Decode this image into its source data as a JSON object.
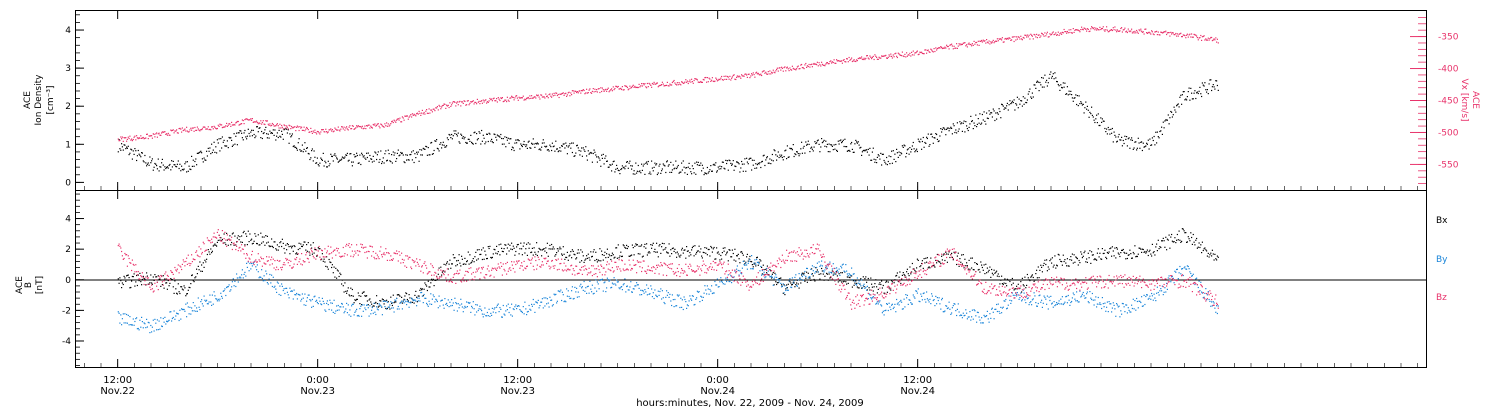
{
  "chart_data": [
    {
      "type": "scatter",
      "panel": "density",
      "title": "",
      "ylabel": [
        "ACE",
        "Ion Density",
        "[cm⁻³]"
      ],
      "ylim": [
        -0.2,
        4.5
      ],
      "yticks": [
        0,
        1,
        2,
        3,
        4
      ],
      "y2label": [
        "ACE",
        "Vx [km/s]"
      ],
      "y2lim": [
        -590,
        -310
      ],
      "y2ticks": [
        -550,
        -500,
        -450,
        -400,
        -350
      ],
      "series": [
        {
          "color": "#000000",
          "axis": "left",
          "x_hours": [
            0,
            2,
            4,
            6,
            8,
            10,
            12,
            14,
            16,
            18,
            20,
            22,
            24,
            26,
            28,
            30,
            32,
            34,
            36,
            38,
            40,
            42,
            44,
            46,
            48,
            50,
            52,
            54,
            56,
            58,
            60,
            62,
            64,
            66
          ],
          "values": [
            1.0,
            0.5,
            0.4,
            1.0,
            1.3,
            1.3,
            0.6,
            0.6,
            0.7,
            0.7,
            1.2,
            1.2,
            1.0,
            1.0,
            0.8,
            0.4,
            0.4,
            0.4,
            0.4,
            0.5,
            0.8,
            1.0,
            1.0,
            0.6,
            1.0,
            1.4,
            1.7,
            2.1,
            2.8,
            2.0,
            1.1,
            1.0,
            2.3,
            2.6
          ]
        },
        {
          "color": "#e8336b",
          "axis": "right",
          "x_hours": [
            0,
            2,
            4,
            6,
            8,
            10,
            12,
            14,
            16,
            18,
            20,
            22,
            24,
            26,
            28,
            30,
            32,
            34,
            36,
            38,
            40,
            42,
            44,
            46,
            48,
            50,
            52,
            54,
            56,
            58,
            60,
            62,
            64,
            66
          ],
          "values": [
            -510,
            -505,
            -495,
            -490,
            -480,
            -490,
            -498,
            -492,
            -488,
            -470,
            -455,
            -450,
            -445,
            -442,
            -435,
            -430,
            -425,
            -420,
            -415,
            -410,
            -400,
            -392,
            -385,
            -380,
            -375,
            -365,
            -358,
            -352,
            -345,
            -337,
            -338,
            -342,
            -347,
            -355
          ]
        }
      ]
    },
    {
      "type": "scatter",
      "panel": "field",
      "title": "",
      "ylabel": [
        "ACE",
        "B",
        "[nT]"
      ],
      "ylim": [
        -5.7,
        5.8
      ],
      "yticks": [
        -4,
        -2,
        0,
        2,
        4
      ],
      "legend_position": "right",
      "series": [
        {
          "name": "Bx",
          "color": "#000000",
          "x_hours": [
            0,
            2,
            4,
            6,
            8,
            10,
            12,
            14,
            16,
            18,
            20,
            22,
            24,
            26,
            28,
            30,
            32,
            34,
            36,
            38,
            40,
            42,
            44,
            46,
            48,
            50,
            52,
            54,
            56,
            58,
            60,
            62,
            64,
            66
          ],
          "values": [
            -0.2,
            0.2,
            -0.7,
            2.6,
            2.8,
            2.2,
            2.0,
            -1.0,
            -1.5,
            -1.0,
            1.2,
            1.8,
            2.1,
            2.0,
            1.5,
            1.9,
            2.0,
            1.9,
            1.8,
            1.4,
            -0.5,
            0.5,
            0.0,
            -0.5,
            1.0,
            1.5,
            0.8,
            -0.5,
            1.2,
            1.5,
            1.8,
            2.0,
            3.0,
            1.2
          ]
        },
        {
          "name": "By",
          "color": "#1a85d9",
          "x_hours": [
            0,
            2,
            4,
            6,
            8,
            10,
            12,
            14,
            16,
            18,
            20,
            22,
            24,
            26,
            28,
            30,
            32,
            34,
            36,
            38,
            40,
            42,
            44,
            46,
            48,
            50,
            52,
            54,
            56,
            58,
            60,
            62,
            64,
            66
          ],
          "values": [
            -2.5,
            -3.0,
            -2.0,
            -1.0,
            1.0,
            -0.8,
            -1.5,
            -2.0,
            -1.8,
            -1.2,
            -1.5,
            -2.0,
            -2.0,
            -1.3,
            -0.5,
            -0.2,
            -0.8,
            -1.5,
            -0.3,
            1.2,
            -0.5,
            1.0,
            0.5,
            -2.0,
            -1.0,
            -1.8,
            -2.5,
            -1.0,
            -1.5,
            -1.0,
            -2.0,
            -1.2,
            0.8,
            -2.0
          ]
        },
        {
          "name": "Bz",
          "color": "#e8336b",
          "x_hours": [
            0,
            2,
            4,
            6,
            8,
            10,
            12,
            14,
            16,
            18,
            20,
            22,
            24,
            26,
            28,
            30,
            32,
            34,
            36,
            38,
            40,
            42,
            44,
            46,
            48,
            50,
            52,
            54,
            56,
            58,
            60,
            62,
            64,
            66
          ],
          "values": [
            2.0,
            -0.5,
            1.0,
            3.0,
            1.5,
            1.0,
            1.8,
            2.0,
            1.8,
            1.0,
            0.2,
            0.5,
            1.0,
            1.2,
            0.5,
            1.0,
            0.8,
            0.6,
            1.0,
            -0.3,
            1.5,
            2.0,
            -1.5,
            -0.8,
            0.5,
            1.8,
            -0.5,
            -0.8,
            -0.2,
            -0.2,
            0.0,
            -0.2,
            0.0,
            -1.5
          ]
        }
      ],
      "legend_labels": [
        "Bx",
        "By",
        "Bz"
      ]
    }
  ],
  "x_axis": {
    "range_hours": [
      -2.5,
      78.5
    ],
    "ticks": [
      {
        "hour": 0,
        "time": "12:00",
        "date": "Nov.22"
      },
      {
        "hour": 12,
        "time": "0:00",
        "date": "Nov.23"
      },
      {
        "hour": 24,
        "time": "12:00",
        "date": "Nov.23"
      },
      {
        "hour": 36,
        "time": "0:00",
        "date": "Nov.24"
      },
      {
        "hour": 48,
        "time": "12:00",
        "date": "Nov.24"
      }
    ],
    "label": "hours:minutes, Nov. 22, 2009 - Nov. 24, 2009"
  },
  "colors": {
    "black": "#000000",
    "pink": "#e8336b",
    "blue": "#1a85d9"
  }
}
